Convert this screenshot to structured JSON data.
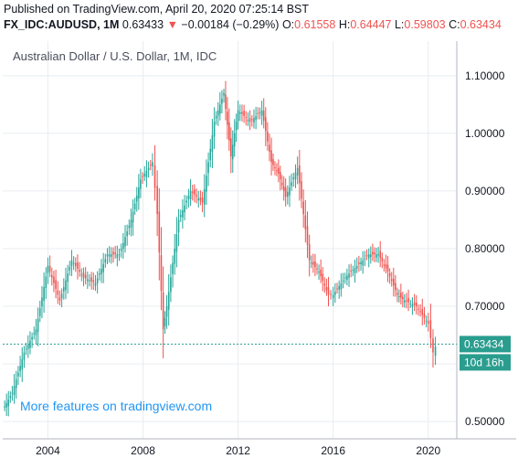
{
  "header": {
    "published": "Published on TradingView.com, April 20, 2020 07:25:14 BST",
    "symbol": "FX_IDC:AUDUSD, 1M",
    "last": "0.63433",
    "change_arrow": "▼",
    "change": "−0.00184 (−0.29%)",
    "o_label": "O:",
    "o": "0.61558",
    "h_label": "H:",
    "h": "0.64447",
    "l_label": "L:",
    "l": "0.59803",
    "c_label": "C:",
    "c": "0.63434"
  },
  "colors": {
    "up": "#26a69a",
    "down": "#ef5350",
    "grid": "#e8ecf1",
    "axis_text": "#131722",
    "watermark": "#2196f3",
    "badge": "#2a9d8f"
  },
  "chart_data": {
    "type": "candlestick",
    "title": "Australian Dollar / U.S. Dollar, 1M, IDC",
    "watermark": "More features on tradingview.com",
    "y_ticks": [
      "1.10000",
      "1.00000",
      "0.90000",
      "0.80000",
      "0.70000",
      "0.60000",
      "0.50000"
    ],
    "y_tick_values": [
      1.1,
      1.0,
      0.9,
      0.8,
      0.7,
      0.6,
      0.5
    ],
    "ylim": [
      0.47,
      1.16
    ],
    "x_ticks": [
      "2004",
      "2008",
      "2012",
      "2016",
      "2020"
    ],
    "x_tick_values": [
      2004,
      2008,
      2012,
      2016,
      2020
    ],
    "xlim": [
      2002.1,
      2021.2
    ],
    "last_price_label": "0.63434",
    "last_price": 0.63434,
    "countdown_label": "10d 16h",
    "series": [
      {
        "name": "AUDUSD",
        "x": [
          2002.1,
          2002.5,
          2003.0,
          2003.5,
          2004.0,
          2004.5,
          2005.0,
          2005.5,
          2006.0,
          2006.5,
          2007.0,
          2007.5,
          2007.9,
          2008.4,
          2008.6,
          2008.85,
          2009.0,
          2009.5,
          2010.0,
          2010.5,
          2011.0,
          2011.4,
          2011.7,
          2012.0,
          2012.5,
          2013.0,
          2013.4,
          2013.7,
          2014.0,
          2014.5,
          2015.0,
          2015.4,
          2015.8,
          2016.0,
          2016.5,
          2017.0,
          2017.5,
          2017.9,
          2018.3,
          2018.7,
          2019.0,
          2019.5,
          2020.0,
          2020.2,
          2020.3
        ],
        "close": [
          0.52,
          0.55,
          0.62,
          0.66,
          0.77,
          0.71,
          0.78,
          0.75,
          0.74,
          0.79,
          0.79,
          0.85,
          0.92,
          0.95,
          0.86,
          0.66,
          0.7,
          0.85,
          0.9,
          0.88,
          1.02,
          1.07,
          0.96,
          1.04,
          1.02,
          1.04,
          0.95,
          0.93,
          0.89,
          0.94,
          0.78,
          0.76,
          0.72,
          0.72,
          0.75,
          0.77,
          0.79,
          0.79,
          0.76,
          0.72,
          0.71,
          0.7,
          0.67,
          0.62,
          0.63
        ]
      }
    ]
  }
}
